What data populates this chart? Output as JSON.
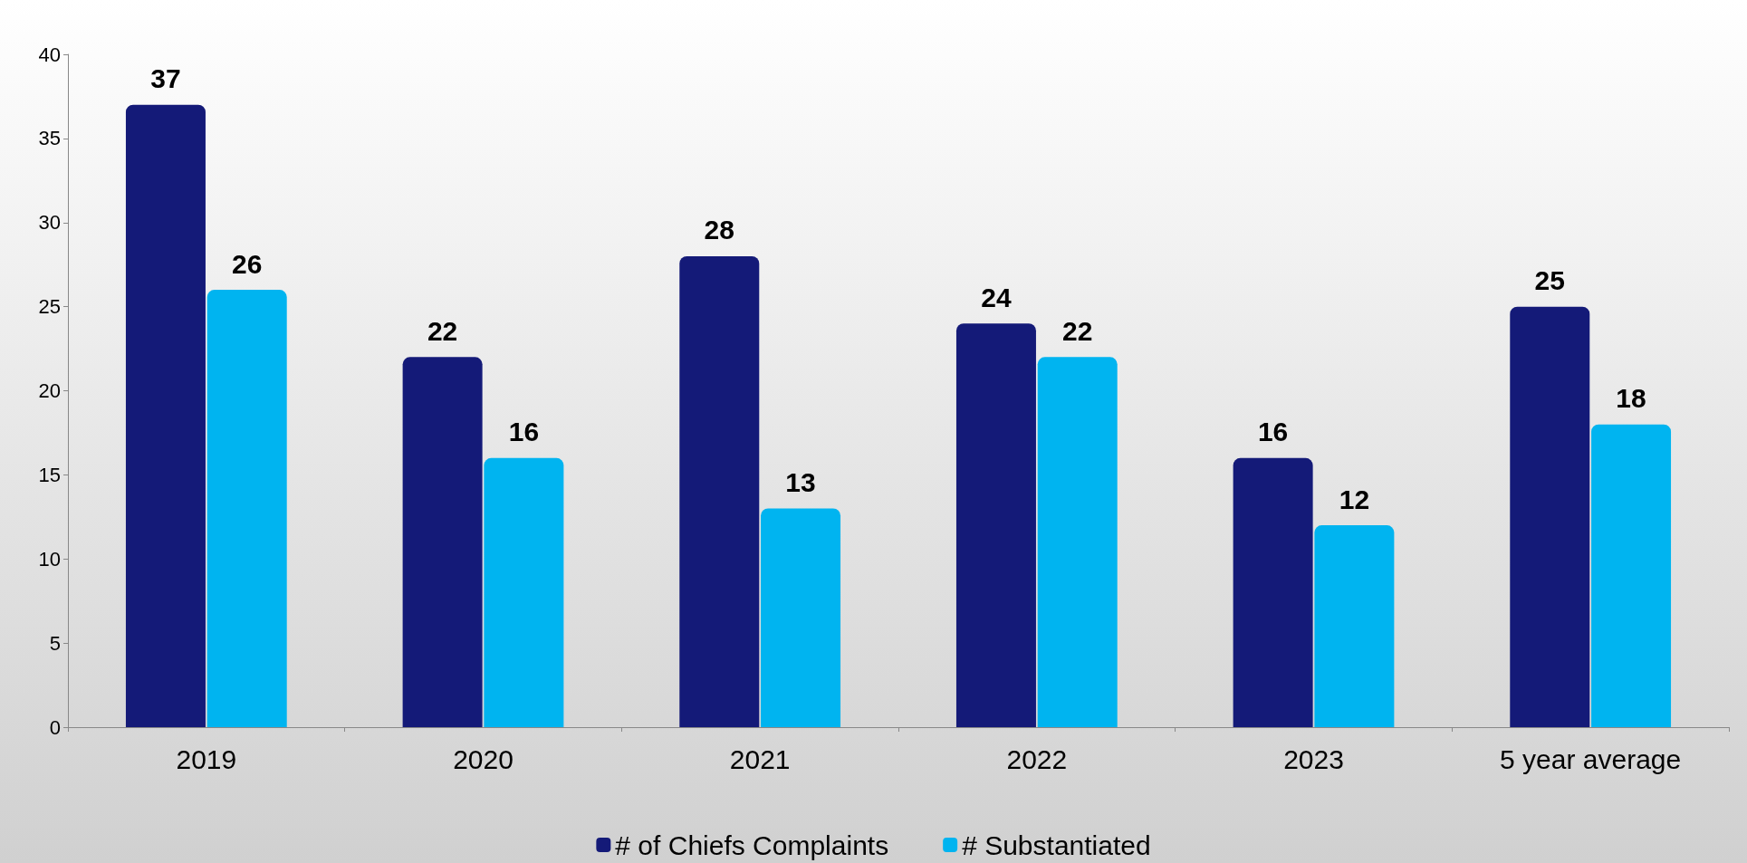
{
  "chart_data": {
    "type": "bar",
    "categories": [
      "2019",
      "2020",
      "2021",
      "2022",
      "2023",
      "5 year average"
    ],
    "series": [
      {
        "name": "# of Chiefs Complaints",
        "color": "#141a78",
        "values": [
          37,
          22,
          28,
          24,
          16,
          25
        ]
      },
      {
        "name": "# Substantiated",
        "color": "#00b4f0",
        "values": [
          26,
          16,
          13,
          22,
          12,
          18
        ]
      }
    ],
    "ylim": [
      0,
      40
    ],
    "yticks": [
      0,
      5,
      10,
      15,
      20,
      25,
      30,
      35,
      40
    ],
    "grid": false,
    "legend": "bottom",
    "data_labels": true
  }
}
